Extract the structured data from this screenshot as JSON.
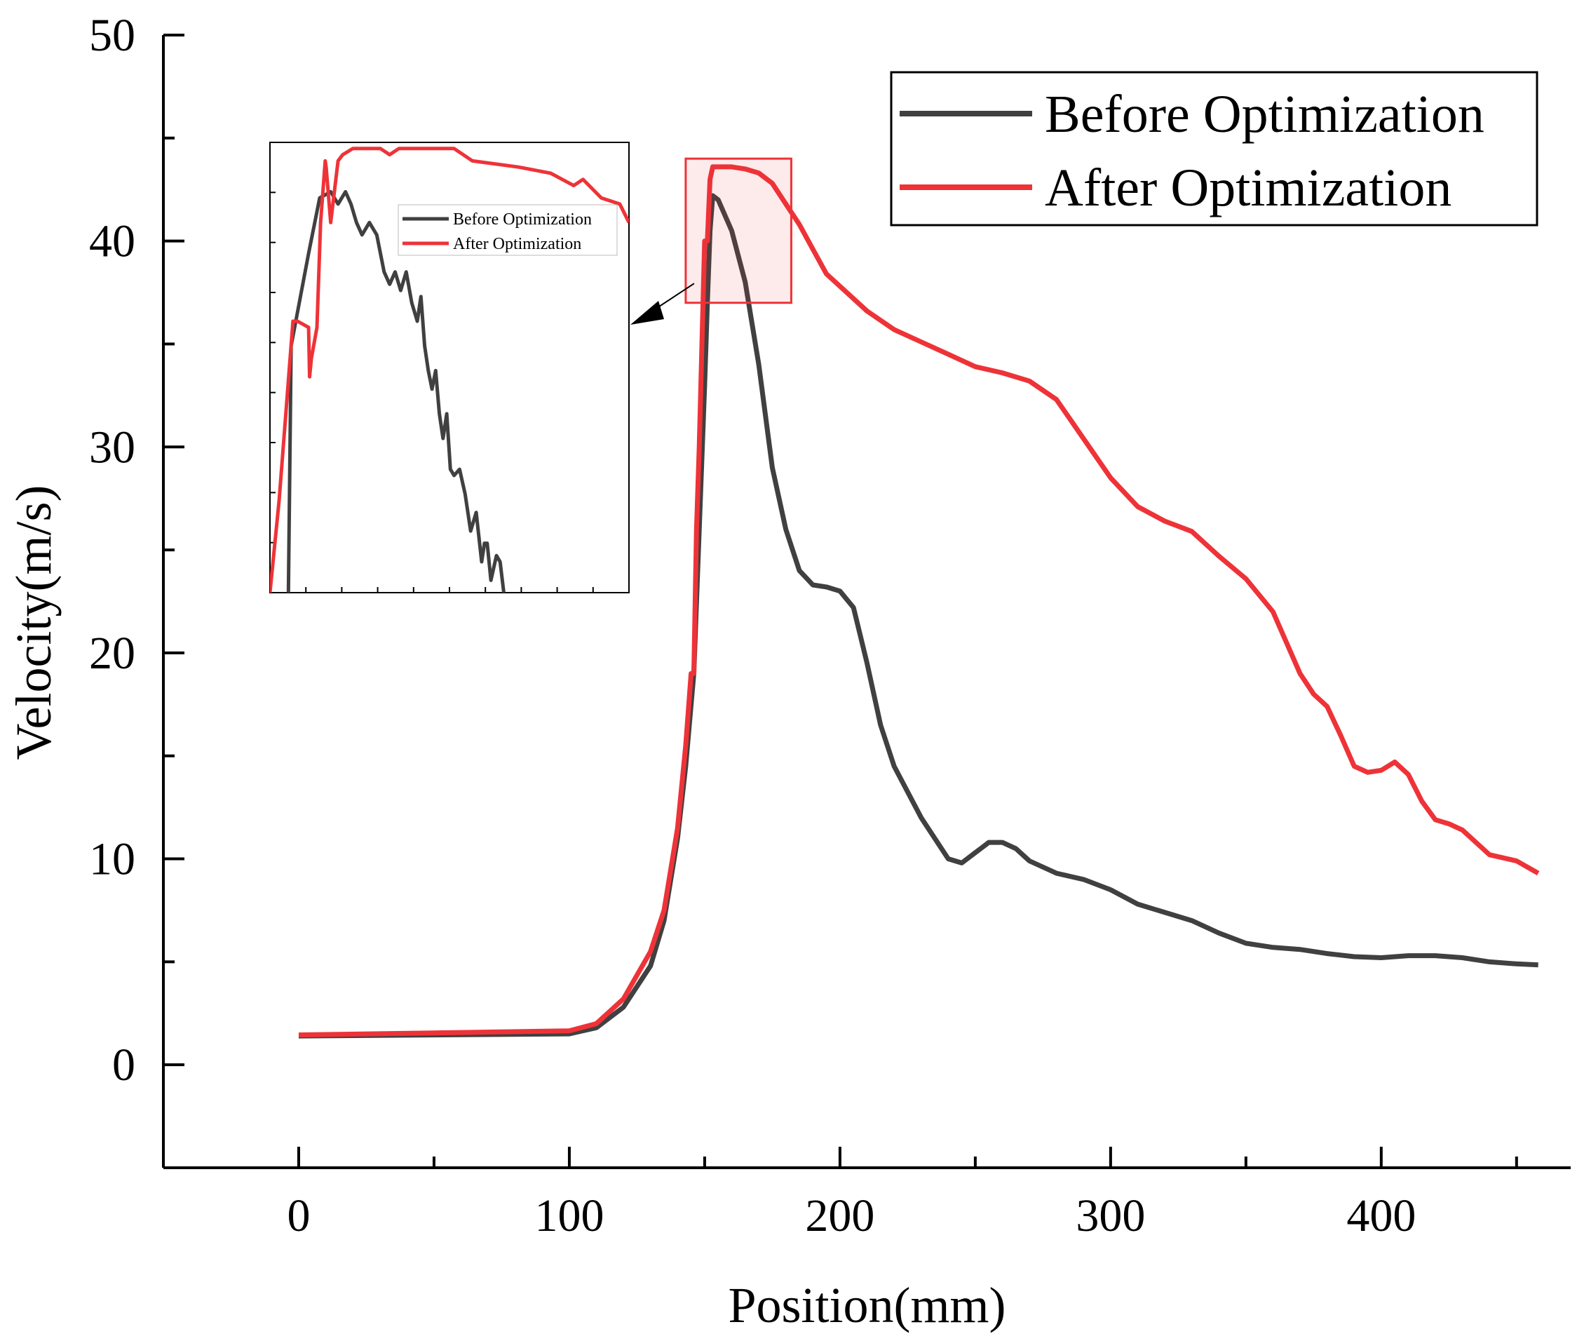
{
  "chart_data": {
    "type": "line",
    "title": "",
    "xlabel": "Position(mm)",
    "ylabel": "Velocity(m/s)",
    "xlim": [
      -50,
      470
    ],
    "ylim": [
      -5,
      50
    ],
    "xticks": [
      0,
      100,
      200,
      300,
      400
    ],
    "yticks": [
      0,
      10,
      20,
      30,
      40,
      50
    ],
    "grid": false,
    "legend_position": "top-right",
    "colors": {
      "before": "#404040",
      "after": "#ee3338"
    },
    "series": [
      {
        "name": "Before Optimization",
        "color": "#404040",
        "x": [
          0,
          50,
          100,
          110,
          120,
          130,
          135,
          140,
          143,
          146,
          148,
          150,
          151,
          152,
          153,
          155,
          160,
          165,
          170,
          175,
          180,
          185,
          190,
          195,
          200,
          205,
          210,
          215,
          220,
          230,
          240,
          245,
          250,
          255,
          260,
          265,
          270,
          280,
          290,
          300,
          310,
          320,
          330,
          340,
          350,
          360,
          370,
          380,
          390,
          400,
          410,
          420,
          430,
          440,
          450,
          458
        ],
        "y": [
          1.4,
          1.45,
          1.5,
          1.8,
          2.8,
          4.8,
          7.0,
          11.0,
          14.5,
          19.0,
          26.0,
          33.0,
          37.0,
          40.5,
          42.2,
          42.0,
          40.5,
          38.0,
          34.0,
          29.0,
          26.0,
          24.0,
          23.3,
          23.2,
          23.0,
          22.2,
          19.5,
          16.5,
          14.5,
          12.0,
          10.0,
          9.8,
          10.3,
          10.8,
          10.8,
          10.5,
          9.9,
          9.3,
          9.0,
          8.5,
          7.8,
          7.4,
          7.0,
          6.4,
          5.9,
          5.7,
          5.6,
          5.4,
          5.25,
          5.2,
          5.3,
          5.3,
          5.2,
          5.0,
          4.9,
          4.85
        ]
      },
      {
        "name": "After Optimization",
        "color": "#ee3338",
        "x": [
          0,
          50,
          100,
          110,
          120,
          130,
          135,
          140,
          143,
          145,
          146,
          147,
          148,
          150,
          151,
          152,
          153,
          155,
          160,
          165,
          170,
          175,
          180,
          185,
          190,
          195,
          200,
          210,
          220,
          230,
          240,
          250,
          260,
          270,
          280,
          290,
          300,
          310,
          320,
          330,
          340,
          350,
          360,
          370,
          375,
          380,
          385,
          390,
          395,
          400,
          405,
          410,
          415,
          420,
          425,
          430,
          440,
          450,
          458
        ],
        "y": [
          1.45,
          1.55,
          1.65,
          2.0,
          3.2,
          5.5,
          7.5,
          11.5,
          15.5,
          19.0,
          19.0,
          26.0,
          30.0,
          40.0,
          40.0,
          43.0,
          43.6,
          43.6,
          43.6,
          43.5,
          43.3,
          42.8,
          41.8,
          40.8,
          39.6,
          38.4,
          37.8,
          36.6,
          35.7,
          35.1,
          34.5,
          33.9,
          33.6,
          33.2,
          32.3,
          30.4,
          28.5,
          27.1,
          26.4,
          25.9,
          24.7,
          23.6,
          22.0,
          19.0,
          18.0,
          17.4,
          16.0,
          14.5,
          14.2,
          14.3,
          14.7,
          14.1,
          12.8,
          11.9,
          11.7,
          11.4,
          10.2,
          9.9,
          9.3
        ]
      }
    ],
    "highlight_box": {
      "x_range": [
        143,
        182
      ],
      "y_range": [
        37,
        44
      ]
    },
    "inset": {
      "description": "zoomed view of the peak region",
      "legend": [
        "Before Optimization",
        "After Optimization"
      ],
      "xlim": [
        143,
        182
      ],
      "ylim": [
        37,
        44.3
      ],
      "series": [
        {
          "name": "Before Optimization",
          "x": [
            145.0,
            145.3,
            147.2,
            148.4,
            149.6,
            150.4,
            151.2,
            151.8,
            152.4,
            153.0,
            153.8,
            154.6,
            155.4,
            156.0,
            156.6,
            157.2,
            157.8,
            158.4,
            159.0,
            159.4,
            159.8,
            160.2,
            160.6,
            161.0,
            161.4,
            161.8,
            162.2,
            162.6,
            163.0,
            163.6,
            164.2,
            164.8,
            165.4,
            166.0,
            166.3,
            166.6,
            167.0,
            167.6,
            168.0,
            168.4
          ],
          "y": [
            37.0,
            41.0,
            42.5,
            43.4,
            43.5,
            43.3,
            43.5,
            43.3,
            43.0,
            42.8,
            43.0,
            42.8,
            42.2,
            42.0,
            42.2,
            41.9,
            42.2,
            41.7,
            41.4,
            41.8,
            41.0,
            40.6,
            40.3,
            40.6,
            39.9,
            39.5,
            39.9,
            39.0,
            38.9,
            39.0,
            38.6,
            38.0,
            38.3,
            37.5,
            37.8,
            37.8,
            37.2,
            37.6,
            37.5,
            37.0
          ]
        },
        {
          "name": "After Optimization",
          "x": [
            143.0,
            144.0,
            145.5,
            145.9,
            146.0,
            147.2,
            147.3,
            147.5,
            148.1,
            148.5,
            149.0,
            149.1,
            149.6,
            150.4,
            150.9,
            152.0,
            155.0,
            156.0,
            157.0,
            163.0,
            165.0,
            170.0,
            173.5,
            176.0,
            177.0,
            179.0,
            181.0,
            182.0
          ],
          "y": [
            37.0,
            38.5,
            41.4,
            41.4,
            41.4,
            41.3,
            40.5,
            40.8,
            41.3,
            43.0,
            44.0,
            43.9,
            43.0,
            44.0,
            44.1,
            44.2,
            44.2,
            44.1,
            44.2,
            44.2,
            44.0,
            43.9,
            43.8,
            43.6,
            43.7,
            43.4,
            43.3,
            43.0
          ]
        }
      ]
    }
  }
}
